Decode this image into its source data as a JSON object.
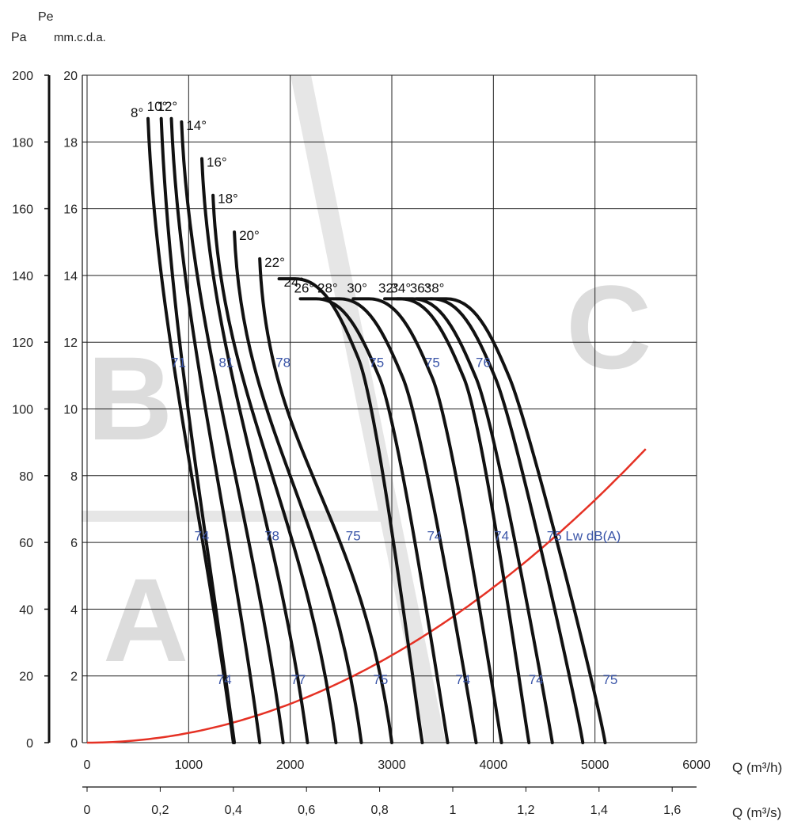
{
  "chart_data": {
    "type": "line",
    "title": "",
    "y_left_unit_label": "Pa",
    "y_symbol_label": "Pe",
    "y_right_unit_label": "mm.c.d.a.",
    "x_primary_label": "Q (m³/h)",
    "x_secondary_label": "Q (m³/s)",
    "x_range": [
      0,
      6000
    ],
    "y_range": [
      0,
      200
    ],
    "x_ticks": [
      "0",
      "1000",
      "2000",
      "3000",
      "4000",
      "5000",
      "6000"
    ],
    "x2_ticks": [
      "0",
      "0,2",
      "0,4",
      "0,6",
      "0,8",
      "1",
      "1,2",
      "1,4",
      "1,6"
    ],
    "y_pa_ticks": [
      "0",
      "20",
      "40",
      "60",
      "80",
      "100",
      "120",
      "140",
      "160",
      "180",
      "200"
    ],
    "y_mm_ticks": [
      "0",
      "2",
      "4",
      "6",
      "8",
      "10",
      "12",
      "14",
      "16",
      "18",
      "20"
    ],
    "zones": [
      "A",
      "B",
      "C"
    ],
    "angle_labels": [
      "8°",
      "10°",
      "12°",
      "14°",
      "16°",
      "18°",
      "20°",
      "22°",
      "24°",
      "26°",
      "28°",
      "30°",
      "32°",
      "34°",
      "36°",
      "38°"
    ],
    "series": [
      {
        "name": "8°",
        "x": [
          600,
          1440
        ],
        "y": [
          187,
          0
        ]
      },
      {
        "name": "10°",
        "x": [
          730,
          1450
        ],
        "y": [
          187,
          0
        ]
      },
      {
        "name": "12°",
        "x": [
          830,
          1700
        ],
        "y": [
          187,
          0
        ]
      },
      {
        "name": "14°",
        "x": [
          930,
          1930
        ],
        "y": [
          186,
          0
        ]
      },
      {
        "name": "16°",
        "x": [
          1130,
          2170
        ],
        "y": [
          175,
          0
        ]
      },
      {
        "name": "18°",
        "x": [
          1240,
          2450
        ],
        "y": [
          164,
          0
        ]
      },
      {
        "name": "20°",
        "x": [
          1450,
          2700
        ],
        "y": [
          153,
          0
        ]
      },
      {
        "name": "22°",
        "x": [
          1700,
          3000
        ],
        "y": [
          145,
          0
        ]
      },
      {
        "name": "24°",
        "x": [
          1890,
          3300
        ],
        "y": [
          139,
          0
        ]
      },
      {
        "name": "26°",
        "x": [
          2100,
          3550
        ],
        "y": [
          133,
          0
        ]
      },
      {
        "name": "28°",
        "x": [
          2330,
          3830
        ],
        "y": [
          133,
          0
        ]
      },
      {
        "name": "30°",
        "x": [
          2620,
          4080
        ],
        "y": [
          133,
          0
        ]
      },
      {
        "name": "32°",
        "x": [
          2930,
          4350
        ],
        "y": [
          133,
          0
        ]
      },
      {
        "name": "34°",
        "x": [
          3050,
          4580
        ],
        "y": [
          133,
          0
        ]
      },
      {
        "name": "36°",
        "x": [
          3240,
          4880
        ],
        "y": [
          133,
          0
        ]
      },
      {
        "name": "38°",
        "x": [
          3380,
          5100
        ],
        "y": [
          133,
          0
        ]
      }
    ],
    "system_curve": {
      "name": "system",
      "color": "#e53124",
      "x": [
        0,
        1000,
        2000,
        3000,
        4000,
        5000,
        5500
      ],
      "y": [
        0,
        3,
        12,
        27,
        48,
        71,
        88
      ]
    },
    "sound_labels_row1": [
      {
        "text": "71",
        "x": 900,
        "y": 114
      },
      {
        "text": "81",
        "x": 1370,
        "y": 114
      },
      {
        "text": "78",
        "x": 1930,
        "y": 114
      },
      {
        "text": "75",
        "x": 2850,
        "y": 114
      },
      {
        "text": "75",
        "x": 3400,
        "y": 114
      },
      {
        "text": "76",
        "x": 3900,
        "y": 114
      }
    ],
    "sound_labels_row2": [
      {
        "text": "74",
        "x": 1130,
        "y": 62
      },
      {
        "text": "78",
        "x": 1820,
        "y": 62
      },
      {
        "text": "75",
        "x": 2620,
        "y": 62
      },
      {
        "text": "74",
        "x": 3420,
        "y": 62
      },
      {
        "text": "74",
        "x": 4080,
        "y": 62
      },
      {
        "text": "75 Lw dB(A)",
        "x": 4890,
        "y": 62
      }
    ],
    "sound_labels_row3": [
      {
        "text": "74",
        "x": 1350,
        "y": 19
      },
      {
        "text": "77",
        "x": 2080,
        "y": 19
      },
      {
        "text": "75",
        "x": 2890,
        "y": 19
      },
      {
        "text": "74",
        "x": 3700,
        "y": 19
      },
      {
        "text": "74",
        "x": 4420,
        "y": 19
      },
      {
        "text": "75",
        "x": 5150,
        "y": 19
      }
    ]
  }
}
